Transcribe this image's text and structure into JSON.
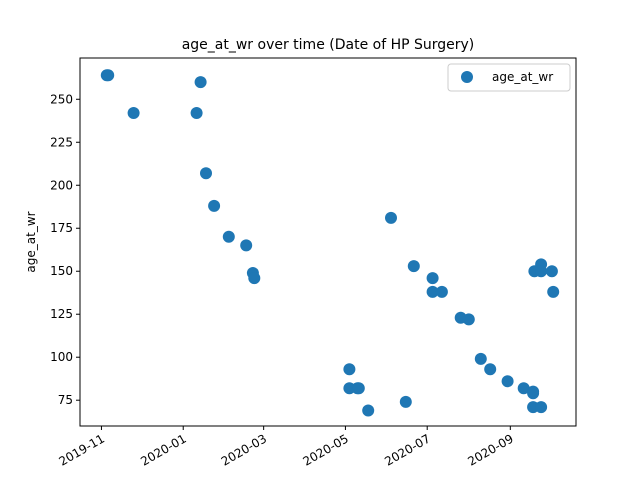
{
  "chart_data": {
    "type": "scatter",
    "title": "age_at_wr over time (Date of HP Surgery)",
    "xlabel": "",
    "ylabel": "age_at_wr",
    "legend": "top-right",
    "grid": false,
    "xlim": [
      "2019-10-16",
      "2020-10-20"
    ],
    "ylim": [
      60,
      274
    ],
    "xticks": [
      "2019-11-01",
      "2020-01-01",
      "2020-03-01",
      "2020-05-01",
      "2020-07-01",
      "2020-09-01"
    ],
    "xtick_labels": [
      "2019-11",
      "2020-01",
      "2020-03",
      "2020-05",
      "2020-07",
      "2020-09"
    ],
    "yticks": [
      75,
      100,
      125,
      150,
      175,
      200,
      225,
      250
    ],
    "color": "#1f77b4",
    "series": [
      {
        "name": "age_at_wr",
        "points": [
          {
            "x": "2019-11-05",
            "y": 264
          },
          {
            "x": "2019-11-06",
            "y": 264
          },
          {
            "x": "2019-11-25",
            "y": 242
          },
          {
            "x": "2020-01-11",
            "y": 242
          },
          {
            "x": "2020-01-14",
            "y": 260
          },
          {
            "x": "2020-01-18",
            "y": 207
          },
          {
            "x": "2020-01-24",
            "y": 188
          },
          {
            "x": "2020-02-04",
            "y": 170
          },
          {
            "x": "2020-02-17",
            "y": 165
          },
          {
            "x": "2020-02-22",
            "y": 149
          },
          {
            "x": "2020-02-23",
            "y": 146
          },
          {
            "x": "2020-05-04",
            "y": 93
          },
          {
            "x": "2020-05-04",
            "y": 82
          },
          {
            "x": "2020-05-10",
            "y": 82
          },
          {
            "x": "2020-05-11",
            "y": 82
          },
          {
            "x": "2020-05-18",
            "y": 69
          },
          {
            "x": "2020-06-04",
            "y": 181
          },
          {
            "x": "2020-06-15",
            "y": 74
          },
          {
            "x": "2020-06-21",
            "y": 153
          },
          {
            "x": "2020-07-05",
            "y": 146
          },
          {
            "x": "2020-07-05",
            "y": 138
          },
          {
            "x": "2020-07-12",
            "y": 138
          },
          {
            "x": "2020-07-26",
            "y": 123
          },
          {
            "x": "2020-08-01",
            "y": 122
          },
          {
            "x": "2020-08-10",
            "y": 99
          },
          {
            "x": "2020-08-17",
            "y": 93
          },
          {
            "x": "2020-08-30",
            "y": 86
          },
          {
            "x": "2020-09-11",
            "y": 82
          },
          {
            "x": "2020-09-18",
            "y": 80
          },
          {
            "x": "2020-09-18",
            "y": 79
          },
          {
            "x": "2020-09-18",
            "y": 71
          },
          {
            "x": "2020-09-19",
            "y": 150
          },
          {
            "x": "2020-09-24",
            "y": 154
          },
          {
            "x": "2020-09-24",
            "y": 150
          },
          {
            "x": "2020-09-24",
            "y": 71
          },
          {
            "x": "2020-10-02",
            "y": 150
          },
          {
            "x": "2020-10-03",
            "y": 138
          }
        ]
      }
    ]
  }
}
